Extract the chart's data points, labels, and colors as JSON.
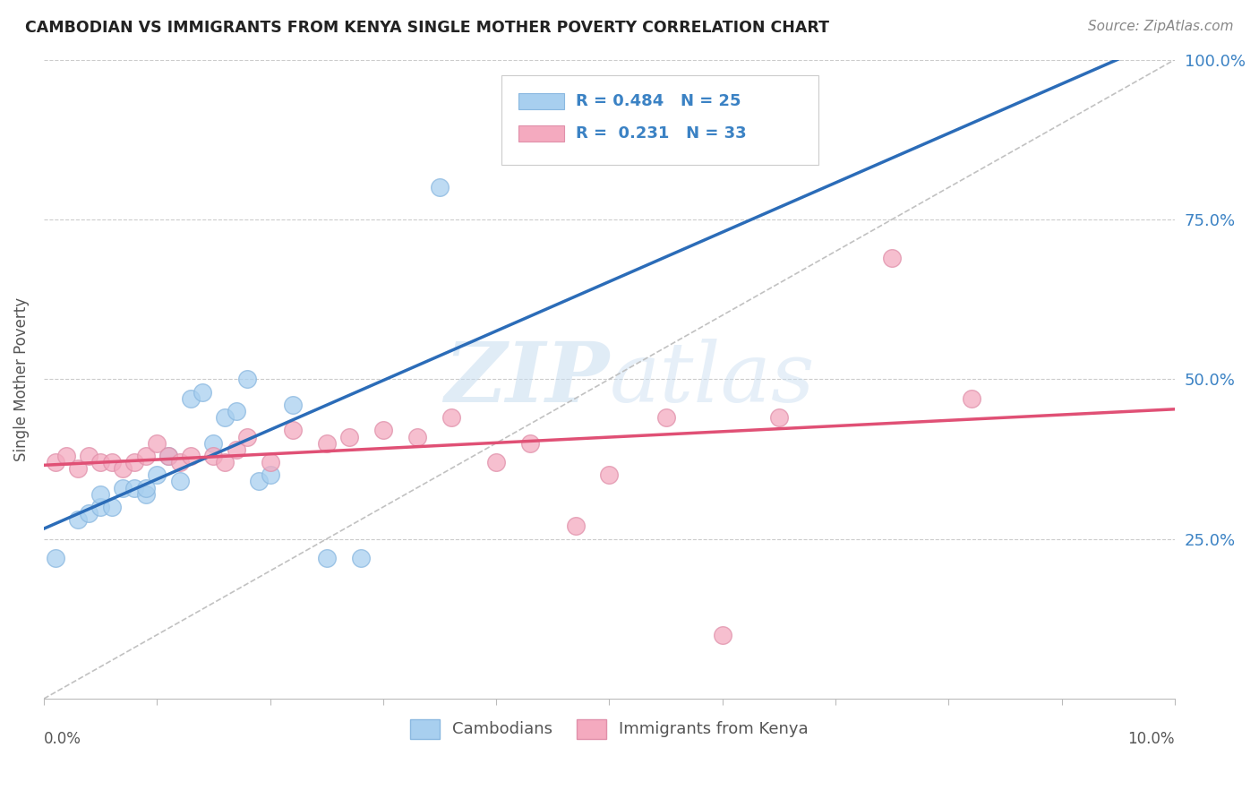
{
  "title": "CAMBODIAN VS IMMIGRANTS FROM KENYA SINGLE MOTHER POVERTY CORRELATION CHART",
  "source": "Source: ZipAtlas.com",
  "ylabel": "Single Mother Poverty",
  "legend_labels": [
    "Cambodians",
    "Immigrants from Kenya"
  ],
  "legend_r": [
    0.484,
    0.231
  ],
  "legend_n": [
    25,
    33
  ],
  "blue_color": "#A8CFEF",
  "pink_color": "#F4AABF",
  "blue_line_color": "#2B6CB8",
  "pink_line_color": "#E05075",
  "xlim": [
    0.0,
    0.1
  ],
  "ylim": [
    0.0,
    1.0
  ],
  "ytick_labels": [
    "25.0%",
    "50.0%",
    "75.0%",
    "100.0%"
  ],
  "cambodian_x": [
    0.001,
    0.003,
    0.004,
    0.005,
    0.005,
    0.006,
    0.007,
    0.008,
    0.009,
    0.009,
    0.01,
    0.011,
    0.012,
    0.013,
    0.014,
    0.015,
    0.016,
    0.017,
    0.018,
    0.019,
    0.02,
    0.022,
    0.025,
    0.028,
    0.035
  ],
  "cambodian_y": [
    0.22,
    0.28,
    0.29,
    0.3,
    0.32,
    0.3,
    0.33,
    0.33,
    0.32,
    0.33,
    0.35,
    0.38,
    0.34,
    0.47,
    0.48,
    0.4,
    0.44,
    0.45,
    0.5,
    0.34,
    0.35,
    0.46,
    0.22,
    0.22,
    0.8
  ],
  "kenya_x": [
    0.001,
    0.002,
    0.003,
    0.004,
    0.005,
    0.006,
    0.007,
    0.008,
    0.009,
    0.01,
    0.011,
    0.012,
    0.013,
    0.015,
    0.016,
    0.017,
    0.018,
    0.02,
    0.022,
    0.025,
    0.027,
    0.03,
    0.033,
    0.036,
    0.04,
    0.043,
    0.047,
    0.05,
    0.055,
    0.06,
    0.065,
    0.075,
    0.082
  ],
  "kenya_y": [
    0.37,
    0.38,
    0.36,
    0.38,
    0.37,
    0.37,
    0.36,
    0.37,
    0.38,
    0.4,
    0.38,
    0.37,
    0.38,
    0.38,
    0.37,
    0.39,
    0.41,
    0.37,
    0.42,
    0.4,
    0.41,
    0.42,
    0.41,
    0.44,
    0.37,
    0.4,
    0.27,
    0.35,
    0.44,
    0.1,
    0.44,
    0.69,
    0.47
  ]
}
